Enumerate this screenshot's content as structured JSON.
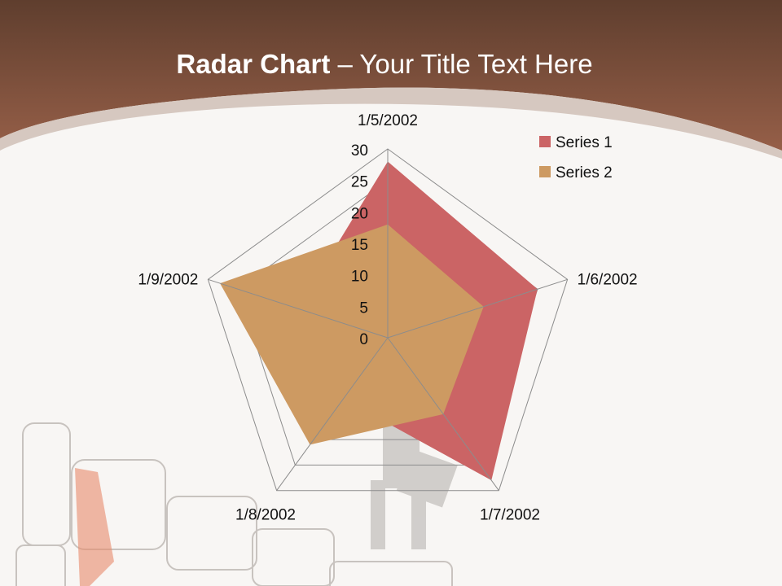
{
  "slide": {
    "title_bold": "Radar Chart",
    "title_rest": " – Your Title Text Here",
    "header_color": "#7a4a36"
  },
  "chart_data": {
    "type": "radar",
    "categories": [
      "1/5/2002",
      "1/6/2002",
      "1/7/2002",
      "1/8/2002",
      "1/9/2002"
    ],
    "rlim": [
      0,
      30
    ],
    "ticks": [
      "0",
      "5",
      "10",
      "15",
      "20",
      "25",
      "30"
    ],
    "grid": true,
    "legend": "top-right",
    "series": [
      {
        "name": "Series 1",
        "values": [
          28,
          25,
          28,
          12,
          15
        ],
        "color": "#cb6465"
      },
      {
        "name": "Series 2",
        "values": [
          18,
          16,
          15,
          21,
          28
        ],
        "color": "#cd9a62"
      }
    ]
  }
}
